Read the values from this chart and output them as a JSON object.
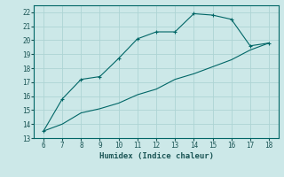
{
  "xlabel": "Humidex (Indice chaleur)",
  "ylabel": "",
  "background_color": "#cce8e8",
  "line_color": "#006666",
  "x_upper": [
    6,
    7,
    8,
    9,
    10,
    11,
    12,
    13,
    14,
    15,
    16,
    17,
    18
  ],
  "y_upper": [
    13.5,
    15.8,
    17.2,
    17.4,
    18.7,
    20.1,
    20.6,
    20.6,
    21.9,
    21.8,
    21.5,
    19.6,
    19.8
  ],
  "x_lower": [
    6,
    7,
    8,
    9,
    10,
    11,
    12,
    13,
    14,
    15,
    16,
    17,
    18
  ],
  "y_lower": [
    13.5,
    14.0,
    14.8,
    15.1,
    15.5,
    16.1,
    16.5,
    17.2,
    17.6,
    18.1,
    18.6,
    19.3,
    19.8
  ],
  "xlim": [
    5.5,
    18.5
  ],
  "ylim": [
    13,
    22.5
  ],
  "xticks": [
    6,
    7,
    8,
    9,
    10,
    11,
    12,
    13,
    14,
    15,
    16,
    17,
    18
  ],
  "yticks": [
    13,
    14,
    15,
    16,
    17,
    18,
    19,
    20,
    21,
    22
  ],
  "grid_color": "#aed4d4",
  "marker": "+",
  "marker_size": 3,
  "line_width": 0.8,
  "tick_fontsize": 5.5,
  "xlabel_fontsize": 6.5
}
